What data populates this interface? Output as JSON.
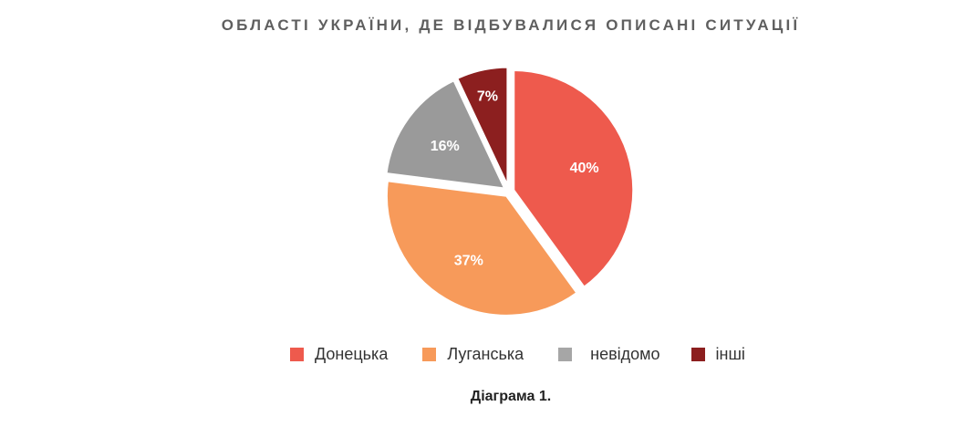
{
  "chart_data": {
    "type": "pie",
    "title": "ОБЛАСТІ УКРАЇНИ, ДЕ ВІДБУВАЛИСЯ ОПИСАНІ СИТУАЦІЇ",
    "caption": "Діаграма 1.",
    "legend_position": "bottom",
    "slices": [
      {
        "label": "Донецька",
        "value": 40,
        "value_label": "40%",
        "color": "#ee5a4d"
      },
      {
        "label": "Луганська",
        "value": 37,
        "value_label": "37%",
        "color": "#f79a5a"
      },
      {
        "label": "невідомо",
        "value": 16,
        "value_label": "16%",
        "color": "#9a9a9a"
      },
      {
        "label": "інші",
        "value": 7,
        "value_label": "7%",
        "color": "#8c1f1f"
      }
    ]
  }
}
